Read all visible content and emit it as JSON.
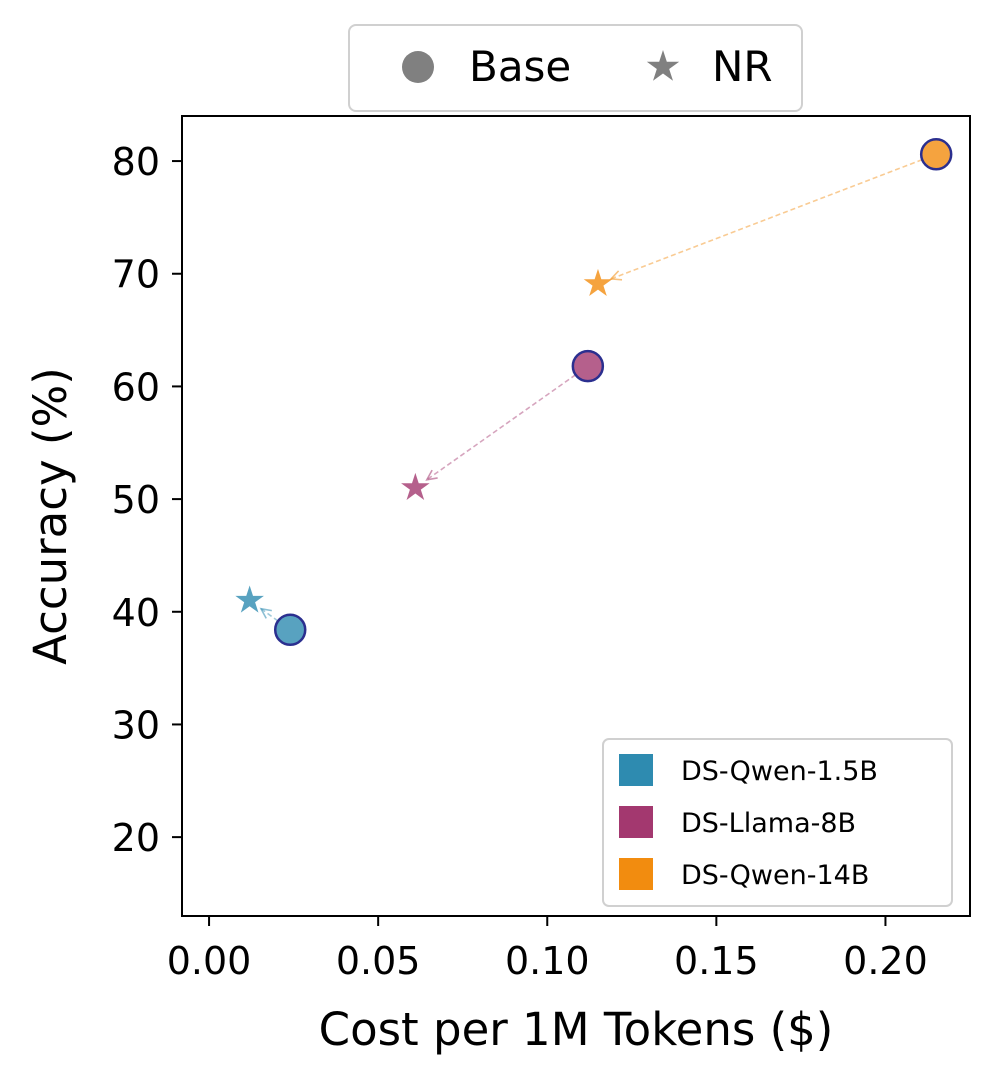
{
  "chart_data": {
    "type": "scatter",
    "xlabel": "Cost per 1M Tokens ($)",
    "ylabel": "Accuracy (%)",
    "xlim": [
      -0.008,
      0.225
    ],
    "ylim": [
      13,
      84
    ],
    "x_ticks": [
      0.0,
      0.05,
      0.1,
      0.15,
      0.2
    ],
    "x_tick_labels": [
      "0.00",
      "0.05",
      "0.10",
      "0.15",
      "0.20"
    ],
    "y_ticks": [
      20,
      30,
      40,
      50,
      60,
      70,
      80
    ],
    "y_tick_labels": [
      "20",
      "30",
      "40",
      "50",
      "60",
      "70",
      "80"
    ],
    "marker_legend": [
      {
        "label": "Base",
        "marker": "circle"
      },
      {
        "label": "NR",
        "marker": "star"
      }
    ],
    "marker_legend_color": "#808080",
    "series": [
      {
        "name": "DS-Qwen-1.5B",
        "color": "#2e8bb0",
        "base": {
          "x": 0.024,
          "y": 38.4
        },
        "nr": {
          "x": 0.012,
          "y": 41.0
        }
      },
      {
        "name": "DS-Llama-8B",
        "color": "#a3386f",
        "base": {
          "x": 0.112,
          "y": 61.8
        },
        "nr": {
          "x": 0.061,
          "y": 51.0
        }
      },
      {
        "name": "DS-Qwen-14B",
        "color": "#f28c0f",
        "base": {
          "x": 0.215,
          "y": 80.6
        },
        "nr": {
          "x": 0.115,
          "y": 69.1
        }
      }
    ],
    "legend_position": "lower-right",
    "top_legend_position": "top-center",
    "base_edge_color": "#2b2f8f"
  }
}
